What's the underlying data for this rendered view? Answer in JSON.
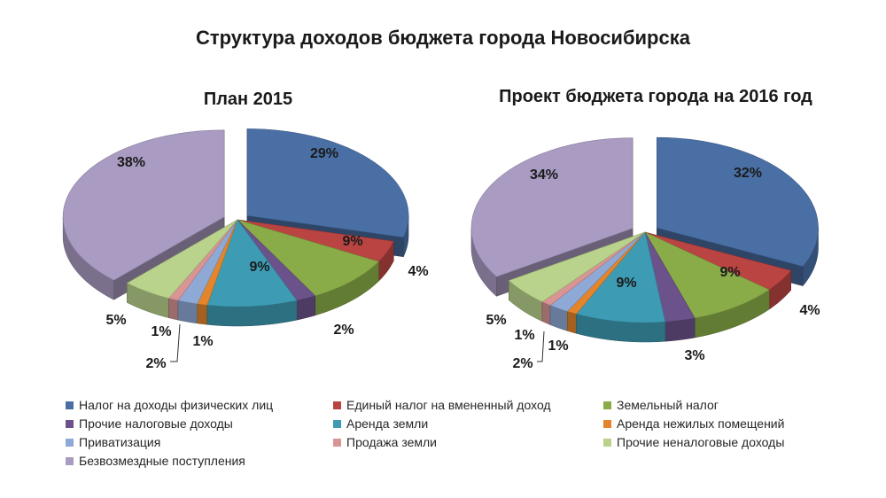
{
  "title": "Структура доходов бюджета города Новосибирска",
  "legend": {
    "items": [
      {
        "label": "Налог на доходы физических лиц",
        "color": "#4a6fa5"
      },
      {
        "label": "Единый налог на вмененный доход",
        "color": "#b94441"
      },
      {
        "label": "Земельный налог",
        "color": "#8aac48"
      },
      {
        "label": "Прочие налоговые доходы",
        "color": "#6c528b"
      },
      {
        "label": "Аренда земли",
        "color": "#3d9cb4"
      },
      {
        "label": "Аренда нежилых помещений",
        "color": "#e3852b"
      },
      {
        "label": "Приватизация",
        "color": "#8fa9d6"
      },
      {
        "label": "Продажа земли",
        "color": "#d99494"
      },
      {
        "label": "Прочие неналоговые доходы",
        "color": "#b9d38c"
      },
      {
        "label": "Безвозмездные поступления",
        "color": "#a99bc2"
      }
    ]
  },
  "chart_data": [
    {
      "type": "pie",
      "title": "План 2015",
      "categories": [
        "Налог на доходы физических лиц",
        "Единый налог на вмененный доход",
        "Земельный налог",
        "Прочие налоговые доходы",
        "Аренда земли",
        "Аренда нежилых помещений",
        "Приватизация",
        "Продажа земли",
        "Прочие неналоговые доходы",
        "Безвозмездные поступления"
      ],
      "values": [
        29,
        4,
        9,
        2,
        9,
        1,
        2,
        1,
        5,
        38
      ],
      "labels": [
        "29%",
        "4%",
        "9%",
        "2%",
        "9%",
        "1%",
        "2%",
        "1%",
        "5%",
        "38%"
      ],
      "style": "3d-exploded",
      "legend": "bottom"
    },
    {
      "type": "pie",
      "title": "Проект бюджета города на 2016 год",
      "categories": [
        "Налог на доходы физических лиц",
        "Единый налог на вмененный доход",
        "Земельный налог",
        "Прочие налоговые доходы",
        "Аренда земли",
        "Аренда нежилых помещений",
        "Приватизация",
        "Продажа земли",
        "Прочие неналоговые доходы",
        "Безвозмездные поступления"
      ],
      "values": [
        32,
        4,
        9,
        3,
        9,
        1,
        2,
        1,
        5,
        34
      ],
      "labels": [
        "32%",
        "4%",
        "9%",
        "3%",
        "9%",
        "1%",
        "2%",
        "1%",
        "5%",
        "34%"
      ],
      "style": "3d-exploded",
      "legend": "bottom"
    }
  ]
}
